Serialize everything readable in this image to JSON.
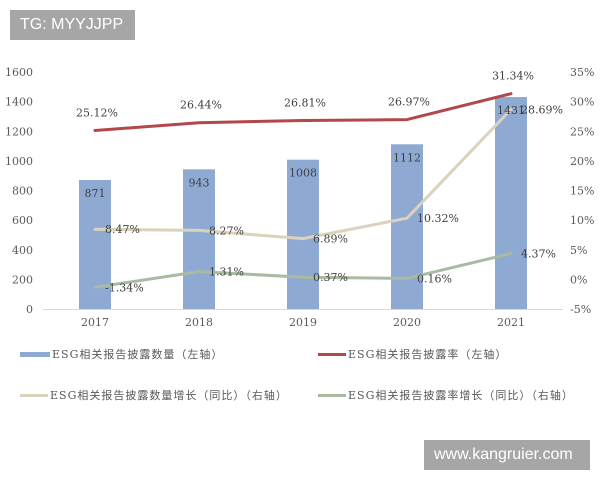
{
  "watermarks": {
    "top_left": "TG: MYYJJPP",
    "bottom_right": "www.kangruier.com"
  },
  "chart_data": {
    "type": "bar+line",
    "title": "",
    "xlabel": "",
    "ylabel_left": "",
    "ylabel_right": "",
    "categories": [
      "2017",
      "2018",
      "2019",
      "2020",
      "2021"
    ],
    "series": [
      {
        "name": "ESG相关报告披露数量（左轴）",
        "type": "bar",
        "axis": "left",
        "values": [
          871,
          943,
          1008,
          1112,
          1431
        ],
        "labels": [
          "871",
          "943",
          "1008",
          "1112",
          "1431"
        ],
        "color": "#8eaad3"
      },
      {
        "name": "ESG相关报告披露率（左轴）",
        "type": "line",
        "axis": "right",
        "values": [
          25.12,
          26.44,
          26.81,
          26.97,
          31.34
        ],
        "labels": [
          "25.12%",
          "26.44%",
          "26.81%",
          "26.97%",
          "31.34%"
        ],
        "color": "#b2484a"
      },
      {
        "name": "ESG相关报告披露数量增长（同比）（右轴）",
        "type": "line",
        "axis": "right",
        "values": [
          8.47,
          8.27,
          6.89,
          10.32,
          28.69
        ],
        "labels": [
          "8.47%",
          "8.27%",
          "6.89%",
          "10.32%",
          "28.69%"
        ],
        "color": "#dad2bc"
      },
      {
        "name": "ESG相关报告披露率增长（同比）（右轴）",
        "type": "line",
        "axis": "right",
        "values": [
          -1.34,
          1.31,
          0.37,
          0.16,
          4.37
        ],
        "labels": [
          "-1.34%",
          "1.31%",
          "0.37%",
          "0.16%",
          "4.37%"
        ],
        "color": "#a9baa0"
      }
    ],
    "y_left": {
      "ylim": [
        0,
        1600
      ],
      "ticks": [
        0,
        200,
        400,
        600,
        800,
        1000,
        1200,
        1400,
        1600
      ],
      "tick_labels": [
        "0",
        "200",
        "400",
        "600",
        "800",
        "1000",
        "1200",
        "1400",
        "1600"
      ]
    },
    "y_right": {
      "ylim": [
        -5,
        35
      ],
      "ticks": [
        -5,
        0,
        5,
        10,
        15,
        20,
        25,
        30,
        35
      ],
      "tick_labels": [
        "-5%",
        "0%",
        "5%",
        "10%",
        "15%",
        "20%",
        "25%",
        "30%",
        "35%"
      ]
    },
    "grid": false,
    "legend_position": "bottom"
  }
}
